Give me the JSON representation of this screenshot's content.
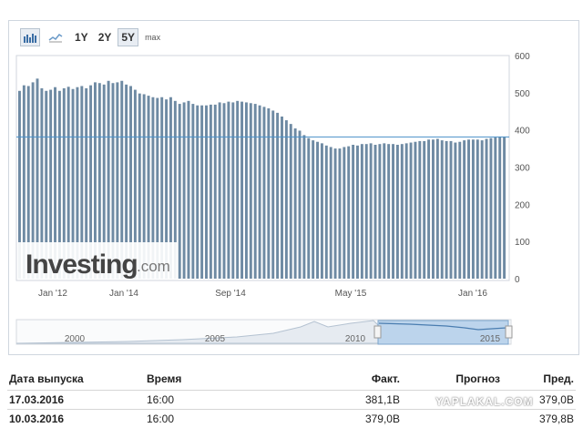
{
  "toolbar": {
    "icons": [
      "bar-chart-icon",
      "line-chart-icon"
    ],
    "ranges": [
      "1Y",
      "2Y",
      "5Y",
      "max"
    ],
    "active_range": "5Y"
  },
  "chart_data": {
    "type": "bar",
    "logo": "Investing.com",
    "x_tick_labels": [
      "Jan '12",
      "Jan '14",
      "Sep '14",
      "May '15",
      "Jan '16"
    ],
    "y_ticks": [
      0,
      100,
      200,
      300,
      400,
      500,
      600
    ],
    "ylim": [
      0,
      600
    ],
    "current_value_line": 381,
    "bar_color": "#6e8aa3",
    "values": [
      505,
      520,
      518,
      528,
      538,
      512,
      505,
      508,
      515,
      505,
      512,
      516,
      510,
      515,
      518,
      512,
      520,
      528,
      526,
      522,
      532,
      526,
      528,
      532,
      522,
      518,
      508,
      498,
      496,
      492,
      488,
      486,
      488,
      482,
      488,
      478,
      470,
      474,
      478,
      470,
      466,
      466,
      466,
      468,
      468,
      474,
      472,
      476,
      474,
      478,
      476,
      474,
      472,
      470,
      466,
      462,
      458,
      452,
      446,
      436,
      426,
      416,
      404,
      398,
      386,
      378,
      372,
      368,
      364,
      358,
      354,
      350,
      350,
      354,
      356,
      360,
      358,
      362,
      362,
      364,
      360,
      362,
      364,
      362,
      362,
      360,
      362,
      364,
      366,
      368,
      370,
      370,
      374,
      374,
      376,
      372,
      370,
      370,
      366,
      368,
      372,
      374,
      374,
      374,
      372,
      376,
      378,
      380,
      382,
      381
    ]
  },
  "navigator": {
    "year_labels": [
      "2000",
      "2005",
      "2010",
      "2015"
    ]
  },
  "table": {
    "headers": {
      "date": "Дата выпуска",
      "time": "Время",
      "actual": "Факт.",
      "forecast": "Прогноз",
      "previous": "Пред."
    },
    "rows": [
      {
        "date": "17.03.2016",
        "time": "16:00",
        "actual": "381,1B",
        "forecast": "",
        "previous": "379,0B"
      },
      {
        "date": "10.03.2016",
        "time": "16:00",
        "actual": "379,0B",
        "forecast": "",
        "previous": "379,8B"
      }
    ]
  },
  "watermark": "YAPLAKAL.COM"
}
